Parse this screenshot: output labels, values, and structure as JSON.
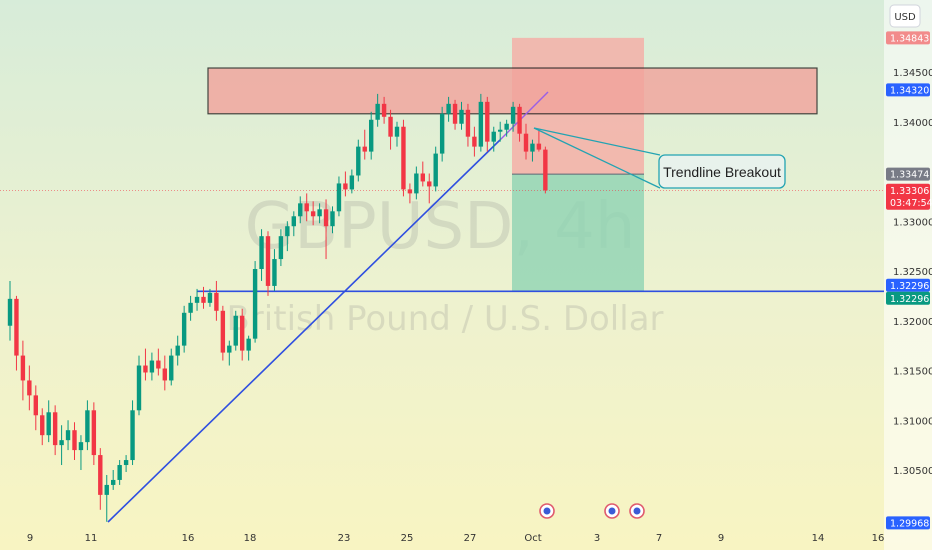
{
  "chart_data": {
    "type": "candlestick",
    "symbol": "GBPUSD",
    "interval": "4h",
    "watermark_title": "GBPUSD, 4h",
    "watermark_subtitle": "British Pound / U.S. Dollar",
    "currency_label": "USD",
    "y_ticks": [
      {
        "value": 1.345,
        "label": "1.34500"
      },
      {
        "value": 1.34,
        "label": "1.34000"
      },
      {
        "value": 1.33,
        "label": "1.33000"
      },
      {
        "value": 1.325,
        "label": "1.32500"
      },
      {
        "value": 1.32,
        "label": "1.32000"
      },
      {
        "value": 1.315,
        "label": "1.31500"
      },
      {
        "value": 1.31,
        "label": "1.31000"
      },
      {
        "value": 1.305,
        "label": "1.30500"
      }
    ],
    "x_ticks": [
      "9",
      "11",
      "16",
      "18",
      "23",
      "25",
      "27",
      "Oct",
      "3",
      "7",
      "9",
      "14",
      "16"
    ],
    "price_tags": [
      {
        "value": 1.34843,
        "label": "1.34843",
        "color": "#f28b8b"
      },
      {
        "value": 1.3432,
        "label": "1.34320",
        "color": "#2962ff"
      },
      {
        "value": 1.33474,
        "label": "1.33474",
        "color": "#787b86"
      },
      {
        "value": 1.33306,
        "label": "1.33306",
        "color": "#f23645",
        "countdown": "03:47:54"
      },
      {
        "value": 1.32296,
        "label": "1.32296",
        "color": "#2962ff"
      },
      {
        "value": 1.32296,
        "label": "1.32296",
        "color": "#089981"
      },
      {
        "value": 1.29968,
        "label": "1.29968",
        "color": "#2962ff"
      }
    ],
    "annotation": {
      "text": "Trendline Breakout"
    },
    "resistance_zone": {
      "top": 1.3454,
      "bottom": 1.3408
    },
    "horizontal_support": 1.32296,
    "position": {
      "entry": 1.33474,
      "stop": 1.34843,
      "target": 1.32296
    },
    "trendline": {
      "from": {
        "index": 0,
        "value": 1.2997
      },
      "to": {
        "index": 83,
        "value": 1.3432
      }
    },
    "candles": [
      [
        1.3195,
        1.324,
        1.318,
        1.3222
      ],
      [
        1.3222,
        1.3225,
        1.315,
        1.3165
      ],
      [
        1.3165,
        1.318,
        1.312,
        1.314
      ],
      [
        1.314,
        1.3155,
        1.311,
        1.3125
      ],
      [
        1.3125,
        1.3135,
        1.309,
        1.3105
      ],
      [
        1.3105,
        1.3112,
        1.3075,
        1.3085
      ],
      [
        1.3085,
        1.312,
        1.3078,
        1.3108
      ],
      [
        1.3108,
        1.3115,
        1.3065,
        1.3075
      ],
      [
        1.3075,
        1.3095,
        1.3055,
        1.308
      ],
      [
        1.308,
        1.31,
        1.307,
        1.309
      ],
      [
        1.309,
        1.3098,
        1.306,
        1.307
      ],
      [
        1.307,
        1.3085,
        1.305,
        1.3078
      ],
      [
        1.3078,
        1.312,
        1.307,
        1.311
      ],
      [
        1.311,
        1.3118,
        1.3055,
        1.3065
      ],
      [
        1.3065,
        1.3072,
        1.301,
        1.3025
      ],
      [
        1.3025,
        1.3045,
        1.2998,
        1.3035
      ],
      [
        1.3035,
        1.305,
        1.303,
        1.304
      ],
      [
        1.304,
        1.306,
        1.3035,
        1.3055
      ],
      [
        1.3055,
        1.3065,
        1.3048,
        1.306
      ],
      [
        1.306,
        1.312,
        1.3055,
        1.311
      ],
      [
        1.311,
        1.3165,
        1.3105,
        1.3155
      ],
      [
        1.3155,
        1.3172,
        1.314,
        1.3148
      ],
      [
        1.3148,
        1.3168,
        1.314,
        1.316
      ],
      [
        1.316,
        1.3172,
        1.3145,
        1.3152
      ],
      [
        1.3152,
        1.3165,
        1.313,
        1.314
      ],
      [
        1.314,
        1.3172,
        1.3135,
        1.3165
      ],
      [
        1.3165,
        1.3185,
        1.3155,
        1.3175
      ],
      [
        1.3175,
        1.3215,
        1.3168,
        1.3208
      ],
      [
        1.3208,
        1.3225,
        1.32,
        1.3218
      ],
      [
        1.3218,
        1.3232,
        1.321,
        1.3224
      ],
      [
        1.3224,
        1.3234,
        1.3212,
        1.3218
      ],
      [
        1.3218,
        1.3232,
        1.3214,
        1.3228
      ],
      [
        1.3228,
        1.324,
        1.32,
        1.321
      ],
      [
        1.321,
        1.3215,
        1.316,
        1.3168
      ],
      [
        1.3168,
        1.318,
        1.3155,
        1.3175
      ],
      [
        1.3175,
        1.321,
        1.317,
        1.3205
      ],
      [
        1.3205,
        1.3212,
        1.316,
        1.317
      ],
      [
        1.317,
        1.3185,
        1.316,
        1.3182
      ],
      [
        1.3182,
        1.326,
        1.3178,
        1.3252
      ],
      [
        1.3252,
        1.3292,
        1.324,
        1.3285
      ],
      [
        1.3285,
        1.329,
        1.3225,
        1.3235
      ],
      [
        1.3235,
        1.3272,
        1.323,
        1.3262
      ],
      [
        1.3262,
        1.3292,
        1.3255,
        1.3285
      ],
      [
        1.3285,
        1.33,
        1.327,
        1.3295
      ],
      [
        1.3295,
        1.331,
        1.3285,
        1.3305
      ],
      [
        1.3305,
        1.3325,
        1.3298,
        1.3318
      ],
      [
        1.3318,
        1.3328,
        1.33,
        1.331
      ],
      [
        1.331,
        1.332,
        1.3296,
        1.3305
      ],
      [
        1.3305,
        1.3318,
        1.3298,
        1.3312
      ],
      [
        1.3312,
        1.3322,
        1.3262,
        1.3295
      ],
      [
        1.3295,
        1.3315,
        1.3288,
        1.331
      ],
      [
        1.331,
        1.3345,
        1.3305,
        1.3338
      ],
      [
        1.3338,
        1.335,
        1.3325,
        1.3332
      ],
      [
        1.3332,
        1.3352,
        1.3328,
        1.3346
      ],
      [
        1.3346,
        1.3382,
        1.334,
        1.3375
      ],
      [
        1.3375,
        1.3392,
        1.3362,
        1.337
      ],
      [
        1.337,
        1.341,
        1.3362,
        1.3402
      ],
      [
        1.3402,
        1.3428,
        1.3395,
        1.3418
      ],
      [
        1.3418,
        1.3425,
        1.3398,
        1.3405
      ],
      [
        1.3405,
        1.3412,
        1.3372,
        1.3385
      ],
      [
        1.3385,
        1.34,
        1.3375,
        1.3395
      ],
      [
        1.3395,
        1.3402,
        1.3325,
        1.3332
      ],
      [
        1.3332,
        1.3338,
        1.3318,
        1.3328
      ],
      [
        1.3328,
        1.3355,
        1.3322,
        1.3348
      ],
      [
        1.3348,
        1.336,
        1.3335,
        1.334
      ],
      [
        1.334,
        1.3348,
        1.3318,
        1.3335
      ],
      [
        1.3335,
        1.3375,
        1.333,
        1.3368
      ],
      [
        1.3368,
        1.3415,
        1.336,
        1.3408
      ],
      [
        1.3408,
        1.3425,
        1.34,
        1.3418
      ],
      [
        1.3418,
        1.3422,
        1.3392,
        1.3398
      ],
      [
        1.3398,
        1.342,
        1.3392,
        1.3412
      ],
      [
        1.3412,
        1.3418,
        1.3375,
        1.3385
      ],
      [
        1.3385,
        1.3395,
        1.3365,
        1.3375
      ],
      [
        1.3375,
        1.3428,
        1.337,
        1.342
      ],
      [
        1.342,
        1.3425,
        1.337,
        1.338
      ],
      [
        1.338,
        1.3395,
        1.337,
        1.339
      ],
      [
        1.339,
        1.34,
        1.338,
        1.3392
      ],
      [
        1.3392,
        1.3402,
        1.3385,
        1.3398
      ],
      [
        1.3398,
        1.342,
        1.339,
        1.3415
      ],
      [
        1.3415,
        1.3418,
        1.338,
        1.3388
      ],
      [
        1.3388,
        1.3398,
        1.3362,
        1.337
      ],
      [
        1.337,
        1.3382,
        1.336,
        1.3378
      ],
      [
        1.3378,
        1.3392,
        1.337,
        1.3372
      ],
      [
        1.3372,
        1.3375,
        1.3328,
        1.3331
      ]
    ]
  }
}
